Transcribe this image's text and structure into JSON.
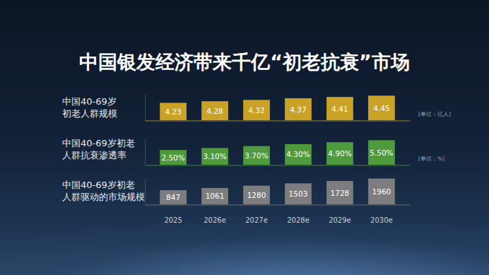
{
  "title": "中国银发经济带来千亿“初老抗衰”市场",
  "chart_data": [
    {
      "type": "bar",
      "title": "中国40-69岁\n初老人群规模",
      "ylabel": "[单位：亿人]",
      "categories": [
        "2025",
        "2026e",
        "2027e",
        "2028e",
        "2029e",
        "2030e"
      ],
      "values": [
        4.23,
        4.28,
        4.32,
        4.37,
        4.41,
        4.45
      ],
      "color": "#c9a227",
      "ylim": [
        3.7,
        4.5
      ],
      "data_labels": true,
      "tick_labels": false
    },
    {
      "type": "bar",
      "title": "中国40-69岁初老\n人群抗衰渗透率",
      "ylabel": "[单位：%]",
      "categories": [
        "2025",
        "2026e",
        "2027e",
        "2028e",
        "2029e",
        "2030e"
      ],
      "values": [
        2.5,
        3.1,
        3.7,
        4.3,
        4.9,
        5.5
      ],
      "value_labels": [
        "2.50%",
        "3.10%",
        "3.70%",
        "4.30%",
        "4.90%",
        "5.50%"
      ],
      "color": "#4f9a3c",
      "ylim": [
        -2,
        6
      ],
      "data_labels": true,
      "tick_labels": false
    },
    {
      "type": "bar",
      "title": "中国40-69岁初老\n人群驱动的市场规模",
      "categories": [
        "2025",
        "2026e",
        "2027e",
        "2028e",
        "2029e",
        "2030e"
      ],
      "values": [
        847,
        1061,
        1280,
        1503,
        1728,
        1960
      ],
      "color": "#7d7d80",
      "ylim": [
        -500,
        2000
      ],
      "data_labels": true,
      "tick_labels": "x"
    }
  ]
}
